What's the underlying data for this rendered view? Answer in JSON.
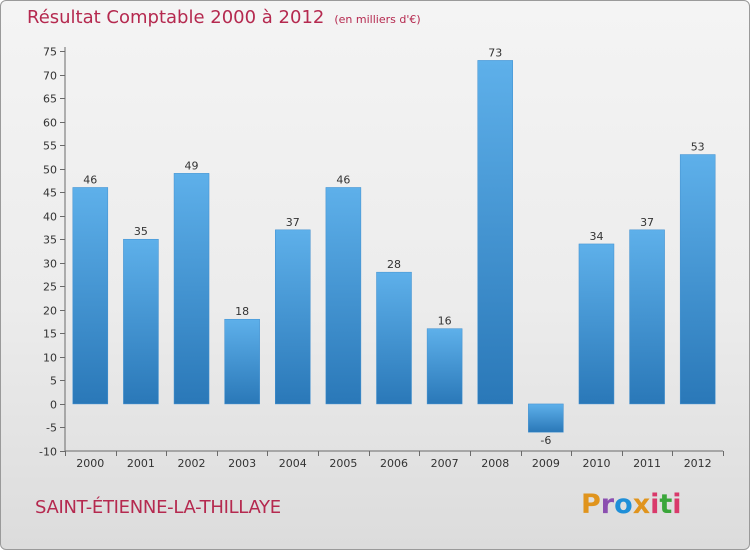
{
  "header": {
    "title": "Résultat Comptable 2000 à 2012",
    "unit": "(en milliers d'€)"
  },
  "footer": {
    "commune": "SAINT-ÉTIENNE-LA-THILLAYE",
    "logo": "Proxiti"
  },
  "colors": {
    "title": "#b5294f",
    "bar_light": "#5eb0ea",
    "bar_dark": "#2a78b8",
    "logo_letters": [
      "#e0941d",
      "#8b4fb0",
      "#1f8fd8",
      "#e0941d",
      "#d93a6b",
      "#3aa63a",
      "#d93a6b"
    ]
  },
  "chart_data": {
    "type": "bar",
    "title": "Résultat Comptable 2000 à 2012",
    "ylabel": "(en milliers d'€)",
    "xlabel": "",
    "categories": [
      "2000",
      "2001",
      "2002",
      "2003",
      "2004",
      "2005",
      "2006",
      "2007",
      "2008",
      "2009",
      "2010",
      "2011",
      "2012"
    ],
    "values": [
      46,
      35,
      49,
      18,
      37,
      46,
      28,
      16,
      73,
      -6,
      34,
      37,
      53
    ],
    "ylim": [
      -10,
      75
    ],
    "yticks": [
      -10,
      -5,
      0,
      5,
      10,
      15,
      20,
      25,
      30,
      35,
      40,
      45,
      50,
      55,
      60,
      65,
      70,
      75
    ],
    "grid": false,
    "legend": "none"
  }
}
